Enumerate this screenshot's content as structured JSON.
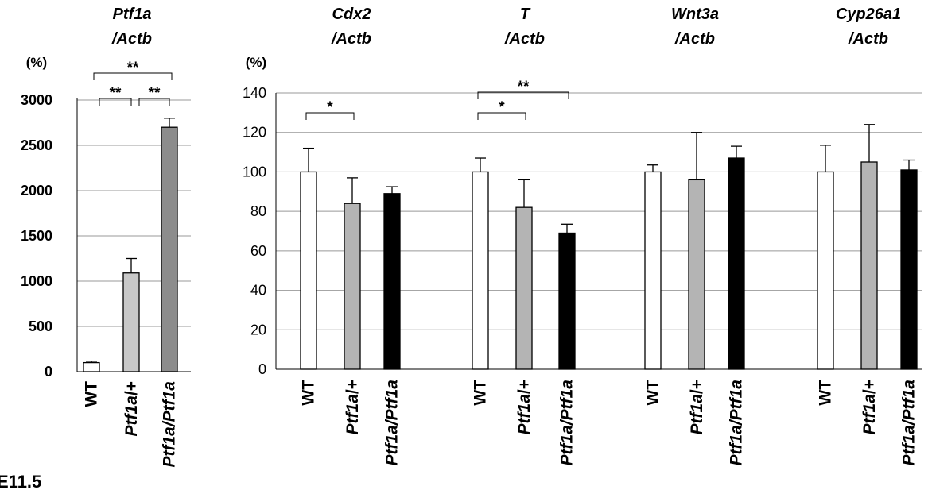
{
  "chart_data": [
    {
      "type": "bar",
      "title_lines": [
        "Ptf1a",
        "/Actb"
      ],
      "ylabel": "(%)",
      "ylim": [
        0,
        3000
      ],
      "yticks": [
        "0",
        "500",
        "1000",
        "1500",
        "2000",
        "2500",
        "3000"
      ],
      "categories": [
        "WT",
        "Ptf1a/+",
        "Ptf1a/Ptf1a"
      ],
      "values": [
        100,
        1090,
        2700
      ],
      "errors": [
        15,
        160,
        100
      ],
      "colors": [
        "#ffffff",
        "#c8c8c8",
        "#8c8c8c"
      ],
      "significance": [
        {
          "label": "**",
          "from": 0,
          "to": 2
        },
        {
          "label": "**",
          "from": 0,
          "to": 1
        },
        {
          "label": "**",
          "from": 1,
          "to": 2
        }
      ]
    },
    {
      "type": "bar",
      "ylabel": "(%)",
      "ylim": [
        0,
        140
      ],
      "yticks": [
        "0",
        "20",
        "40",
        "60",
        "80",
        "100",
        "120",
        "140"
      ],
      "categories": [
        "WT",
        "Ptf1a/+",
        "Ptf1a/Ptf1a"
      ],
      "colors": [
        "#ffffff",
        "#b4b4b4",
        "#000000"
      ],
      "grid": true,
      "groups": [
        {
          "title_lines": [
            "Cdx2",
            "/Actb"
          ],
          "values": [
            100,
            84,
            89
          ],
          "errors": [
            12,
            13,
            3.5
          ],
          "significance": [
            {
              "label": "*",
              "from": 0,
              "to": 1
            }
          ]
        },
        {
          "title_lines": [
            "T",
            "/Actb"
          ],
          "values": [
            100,
            82,
            69
          ],
          "errors": [
            7,
            14,
            4.5
          ],
          "significance": [
            {
              "label": "**",
              "from": 0,
              "to": 2
            },
            {
              "label": "*",
              "from": 0,
              "to": 1
            }
          ]
        },
        {
          "title_lines": [
            "Wnt3a",
            "/Actb"
          ],
          "values": [
            100,
            96,
            107
          ],
          "errors": [
            3.5,
            24,
            6
          ],
          "significance": []
        },
        {
          "title_lines": [
            "Cyp26a1",
            "/Actb"
          ],
          "values": [
            100,
            105,
            101
          ],
          "errors": [
            13.5,
            19,
            5
          ],
          "significance": []
        }
      ]
    }
  ],
  "panel_label": "E11.5"
}
